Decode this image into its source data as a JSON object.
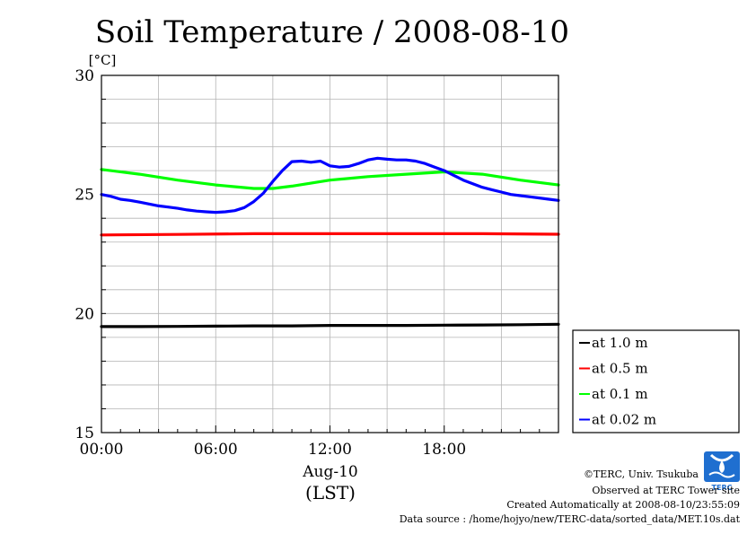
{
  "chart_data": {
    "type": "line",
    "title": "Soil Temperature / 2008-08-10",
    "ylabel": "[°C]",
    "xlabel": "Aug-10",
    "xlabel2": "(LST)",
    "ylim": [
      15,
      30
    ],
    "xlim": [
      0,
      24
    ],
    "yticks": [
      15,
      20,
      25,
      30
    ],
    "xticks": [
      {
        "x": 0,
        "label": "00:00"
      },
      {
        "x": 6,
        "label": "06:00"
      },
      {
        "x": 12,
        "label": "12:00"
      },
      {
        "x": 18,
        "label": "18:00"
      }
    ],
    "grid": true,
    "legend_position": "lower-right-outside",
    "series": [
      {
        "name": "at 1.0 m",
        "color": "#000000",
        "x": [
          0,
          2,
          4,
          6,
          8,
          10,
          12,
          14,
          16,
          18,
          20,
          22,
          24
        ],
        "y": [
          19.45,
          19.45,
          19.46,
          19.47,
          19.48,
          19.48,
          19.5,
          19.5,
          19.5,
          19.51,
          19.52,
          19.53,
          19.55
        ]
      },
      {
        "name": "at 0.5 m",
        "color": "#ff0000",
        "x": [
          0,
          4,
          8,
          12,
          16,
          20,
          24
        ],
        "y": [
          23.3,
          23.32,
          23.35,
          23.35,
          23.35,
          23.35,
          23.33
        ]
      },
      {
        "name": "at 0.1 m",
        "color": "#00ff00",
        "x": [
          0,
          2,
          4,
          6,
          8,
          9,
          10,
          12,
          14,
          16,
          18,
          20,
          22,
          24
        ],
        "y": [
          26.05,
          25.85,
          25.6,
          25.4,
          25.25,
          25.25,
          25.35,
          25.6,
          25.75,
          25.85,
          25.95,
          25.85,
          25.6,
          25.4
        ]
      },
      {
        "name": "at 0.02 m",
        "color": "#0000ff",
        "x": [
          0,
          0.5,
          1,
          1.5,
          2,
          2.5,
          3,
          3.5,
          4,
          4.5,
          5,
          5.5,
          6,
          6.5,
          7,
          7.5,
          8,
          8.5,
          9,
          9.5,
          10,
          10.5,
          11,
          11.5,
          12,
          12.5,
          13,
          13.5,
          14,
          14.5,
          15,
          15.5,
          16,
          16.5,
          17,
          17.5,
          18,
          18.5,
          19,
          19.5,
          20,
          20.5,
          21,
          21.5,
          22,
          22.5,
          23,
          23.5,
          24
        ],
        "y": [
          25.0,
          24.92,
          24.8,
          24.75,
          24.68,
          24.6,
          24.52,
          24.47,
          24.42,
          24.35,
          24.3,
          24.27,
          24.25,
          24.27,
          24.32,
          24.45,
          24.7,
          25.05,
          25.55,
          26.0,
          26.38,
          26.4,
          26.35,
          26.4,
          26.2,
          26.15,
          26.18,
          26.3,
          26.45,
          26.52,
          26.48,
          26.45,
          26.45,
          26.4,
          26.3,
          26.15,
          26.0,
          25.8,
          25.6,
          25.45,
          25.3,
          25.2,
          25.1,
          25.0,
          24.95,
          24.9,
          24.85,
          24.8,
          24.75
        ]
      }
    ]
  },
  "footer": {
    "copyright": "©TERC, Univ. Tsukuba",
    "observed": "Observed at TERC Tower site",
    "created": "Created Automatically at 2008-08-10/23:55:09",
    "source": "Data source : /home/hojyo/new/TERC-data/sorted_data/MET.10s.dat"
  },
  "logo": {
    "text": "TERC",
    "color": "#1f6fd0"
  }
}
